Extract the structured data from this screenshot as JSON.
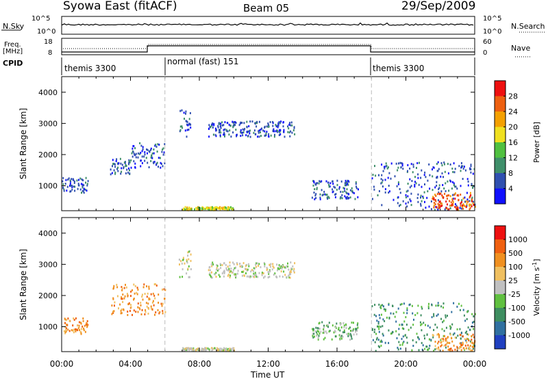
{
  "header": {
    "station": "Syowa East (fitACF)",
    "beam": "Beam 05",
    "date": "29/Sep/2009"
  },
  "top_panels": {
    "nsky_label": "N.Sky",
    "nsearch_label": "N.Search",
    "nsky_ticks": [
      "10^5",
      "10^0"
    ],
    "nsearch_ticks": [
      "10^5",
      "10^0"
    ],
    "freq_label_1": "Freq.",
    "freq_label_2": "[MHz]",
    "freq_ticks": [
      "18",
      "8"
    ],
    "nave_label": "Nave",
    "nave_ticks": [
      "60",
      "0"
    ],
    "cpid_label": "CPID",
    "cpid_segments": [
      {
        "start": 0,
        "end": 6,
        "label": "themis 3300"
      },
      {
        "start": 6,
        "end": 18,
        "label": "normal (fast) 151"
      },
      {
        "start": 18,
        "end": 24,
        "label": "themis 3300"
      }
    ]
  },
  "chart_data": [
    {
      "type": "heatmap",
      "name": "power",
      "xlabel": "Time UT",
      "ylabel": "Slant Range [km]",
      "xlim": [
        0,
        24
      ],
      "ylim": [
        200,
        4500
      ],
      "x_ticks": [
        "00:00",
        "04:00",
        "08:00",
        "12:00",
        "16:00",
        "20:00",
        "00:00"
      ],
      "y_ticks": [
        "1000",
        "2000",
        "3000",
        "4000"
      ],
      "colorbar_label": "Power [dB]",
      "colorbar_ticks": [
        "4",
        "8",
        "12",
        "16",
        "20",
        "24",
        "28"
      ],
      "colors": [
        "#1010ff",
        "#3050b0",
        "#3f8f6a",
        "#50c040",
        "#f0e020",
        "#f4a000",
        "#ee6010",
        "#ee1010"
      ],
      "regions": [
        {
          "t0": 0.0,
          "t1": 1.5,
          "r0": 800,
          "r1": 1300,
          "level": 1
        },
        {
          "t0": 2.8,
          "t1": 4.0,
          "r0": 1400,
          "r1": 1900,
          "level": 1
        },
        {
          "t0": 4.0,
          "t1": 6.0,
          "r0": 1600,
          "r1": 2400,
          "level": 1
        },
        {
          "t0": 6.8,
          "t1": 7.5,
          "r0": 2600,
          "r1": 3500,
          "level": 1
        },
        {
          "t0": 8.5,
          "t1": 13.5,
          "r0": 2600,
          "r1": 3100,
          "level": 1
        },
        {
          "t0": 7.0,
          "t1": 10.0,
          "r0": 250,
          "r1": 350,
          "level": 4
        },
        {
          "t0": 14.5,
          "t1": 17.2,
          "r0": 600,
          "r1": 1200,
          "level": 1
        },
        {
          "t0": 18.0,
          "t1": 24.0,
          "r0": 250,
          "r1": 1800,
          "level": 1
        },
        {
          "t0": 21.5,
          "t1": 24.0,
          "r0": 250,
          "r1": 800,
          "level": 6
        }
      ]
    },
    {
      "type": "heatmap",
      "name": "velocity",
      "xlabel": "Time UT",
      "ylabel": "Slant Range [km]",
      "xlim": [
        0,
        24
      ],
      "ylim": [
        200,
        4500
      ],
      "x_ticks": [
        "00:00",
        "04:00",
        "08:00",
        "12:00",
        "16:00",
        "20:00",
        "00:00"
      ],
      "y_ticks": [
        "1000",
        "2000",
        "3000",
        "4000"
      ],
      "colorbar_label": "Velocity [m s",
      "colorbar_unit_sup": "-1",
      "colorbar_unit_close": "]",
      "colorbar_ticks": [
        "1000",
        "500",
        "100",
        "25",
        "-25",
        "-100",
        "-500",
        "-1000"
      ],
      "colors": [
        "#2040c0",
        "#3070a0",
        "#3e8e60",
        "#60c040",
        "#c0c0c0",
        "#f0c060",
        "#f09020",
        "#f06010",
        "#ee1010"
      ],
      "regions": [
        {
          "t0": 0.0,
          "t1": 1.5,
          "r0": 800,
          "r1": 1300,
          "level": 6
        },
        {
          "t0": 2.8,
          "t1": 6.0,
          "r0": 1400,
          "r1": 2400,
          "level": 6
        },
        {
          "t0": 6.8,
          "t1": 7.5,
          "r0": 2600,
          "r1": 3500,
          "level": 4
        },
        {
          "t0": 8.5,
          "t1": 13.5,
          "r0": 2600,
          "r1": 3100,
          "level": 4
        },
        {
          "t0": 7.0,
          "t1": 10.0,
          "r0": 250,
          "r1": 350,
          "level": 4
        },
        {
          "t0": 14.5,
          "t1": 17.2,
          "r0": 600,
          "r1": 1200,
          "level": 3
        },
        {
          "t0": 18.0,
          "t1": 24.0,
          "r0": 250,
          "r1": 1800,
          "level": 2
        },
        {
          "t0": 21.5,
          "t1": 24.0,
          "r0": 250,
          "r1": 800,
          "level": 6
        }
      ]
    }
  ]
}
